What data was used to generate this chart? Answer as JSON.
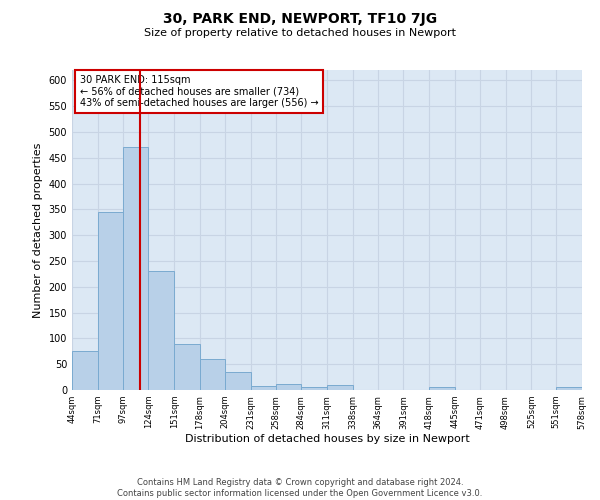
{
  "title": "30, PARK END, NEWPORT, TF10 7JG",
  "subtitle": "Size of property relative to detached houses in Newport",
  "xlabel": "Distribution of detached houses by size in Newport",
  "ylabel": "Number of detached properties",
  "footer_line1": "Contains HM Land Registry data © Crown copyright and database right 2024.",
  "footer_line2": "Contains public sector information licensed under the Open Government Licence v3.0.",
  "bar_edges": [
    44,
    71,
    97,
    124,
    151,
    178,
    204,
    231,
    258,
    284,
    311,
    338,
    364,
    391,
    418,
    445,
    471,
    498,
    525,
    551,
    578
  ],
  "bar_heights": [
    75,
    345,
    470,
    230,
    90,
    60,
    35,
    8,
    12,
    5,
    10,
    0,
    0,
    0,
    5,
    0,
    0,
    0,
    0,
    5
  ],
  "bar_color": "#b8d0e8",
  "bar_edge_color": "#7aaad0",
  "grid_color": "#c8d4e4",
  "bg_color": "#dce8f4",
  "vline_x": 115,
  "vline_color": "#cc0000",
  "annotation_text": "30 PARK END: 115sqm\n← 56% of detached houses are smaller (734)\n43% of semi-detached houses are larger (556) →",
  "annotation_box_color": "#cc0000",
  "ylim": [
    0,
    620
  ],
  "yticks": [
    0,
    50,
    100,
    150,
    200,
    250,
    300,
    350,
    400,
    450,
    500,
    550,
    600
  ],
  "tick_labels": [
    "44sqm",
    "71sqm",
    "97sqm",
    "124sqm",
    "151sqm",
    "178sqm",
    "204sqm",
    "231sqm",
    "258sqm",
    "284sqm",
    "311sqm",
    "338sqm",
    "364sqm",
    "391sqm",
    "418sqm",
    "445sqm",
    "471sqm",
    "498sqm",
    "525sqm",
    "551sqm",
    "578sqm"
  ]
}
